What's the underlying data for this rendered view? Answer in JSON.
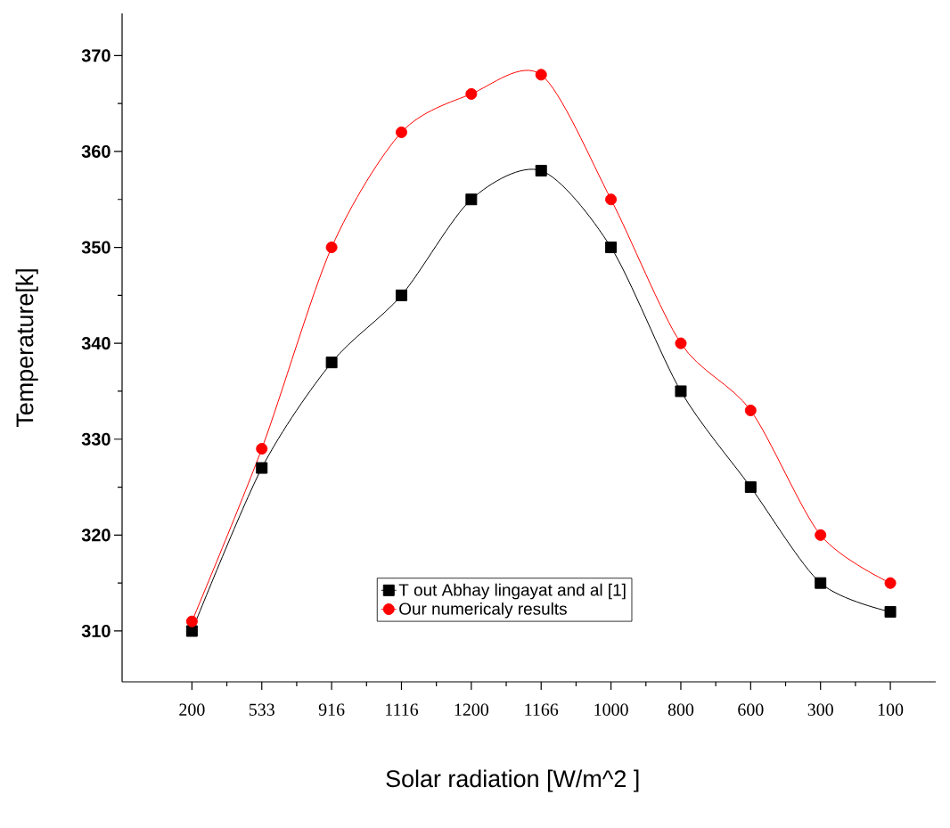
{
  "chart_data": {
    "type": "line",
    "xlabel": "Solar radiation [W/m^2  ]",
    "ylabel": "Temperature[k]",
    "categories": [
      "200",
      "533",
      "916",
      "1116",
      "1200",
      "1166",
      "1000",
      "800",
      "600",
      "300",
      "100"
    ],
    "series": [
      {
        "name": "T out Abhay lingayat and al [1]",
        "color": "#000000",
        "marker": "square",
        "values": [
          310,
          327,
          338,
          345,
          355,
          358,
          350,
          335,
          325,
          315,
          312
        ]
      },
      {
        "name": "Our numericaly results",
        "color": "#ff0000",
        "marker": "circle",
        "values": [
          311,
          329,
          350,
          362,
          366,
          368,
          355,
          340,
          333,
          320,
          315
        ]
      }
    ],
    "ylim": [
      304.7,
      374.4
    ],
    "yticks": [
      310,
      320,
      330,
      340,
      350,
      360,
      370
    ],
    "legend": "bottom",
    "grid": false
  }
}
